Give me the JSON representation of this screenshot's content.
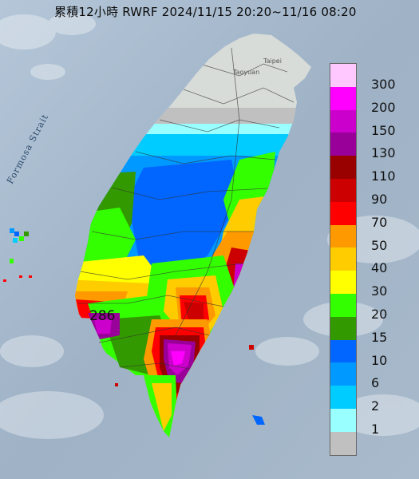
{
  "title": "累積12小時 RWRF 2024/11/15 20:20~11/16 08:20",
  "strait_label": "Formosa Strait",
  "city_labels": {
    "taipei": "Taipei",
    "taoyuan": "Taoyuan"
  },
  "max_marker": {
    "value": "286",
    "symbol": "△",
    "color": "#cc00cc"
  },
  "legend": [
    {
      "label": "300",
      "color": "#ffc8ff"
    },
    {
      "label": "200",
      "color": "#ff00ff"
    },
    {
      "label": "150",
      "color": "#cc00cc"
    },
    {
      "label": "130",
      "color": "#990099"
    },
    {
      "label": "110",
      "color": "#990000"
    },
    {
      "label": "90",
      "color": "#cc0000"
    },
    {
      "label": "70",
      "color": "#ff0000"
    },
    {
      "label": "50",
      "color": "#ff9900"
    },
    {
      "label": "40",
      "color": "#ffcc00"
    },
    {
      "label": "30",
      "color": "#ffff00"
    },
    {
      "label": "20",
      "color": "#33ff00"
    },
    {
      "label": "15",
      "color": "#339900"
    },
    {
      "label": "10",
      "color": "#0066ff"
    },
    {
      "label": "6",
      "color": "#0099ff"
    },
    {
      "label": "2",
      "color": "#00ccff"
    },
    {
      "label": "1",
      "color": "#99ffff"
    },
    {
      "label": "",
      "color": "#c0c0c0"
    }
  ]
}
